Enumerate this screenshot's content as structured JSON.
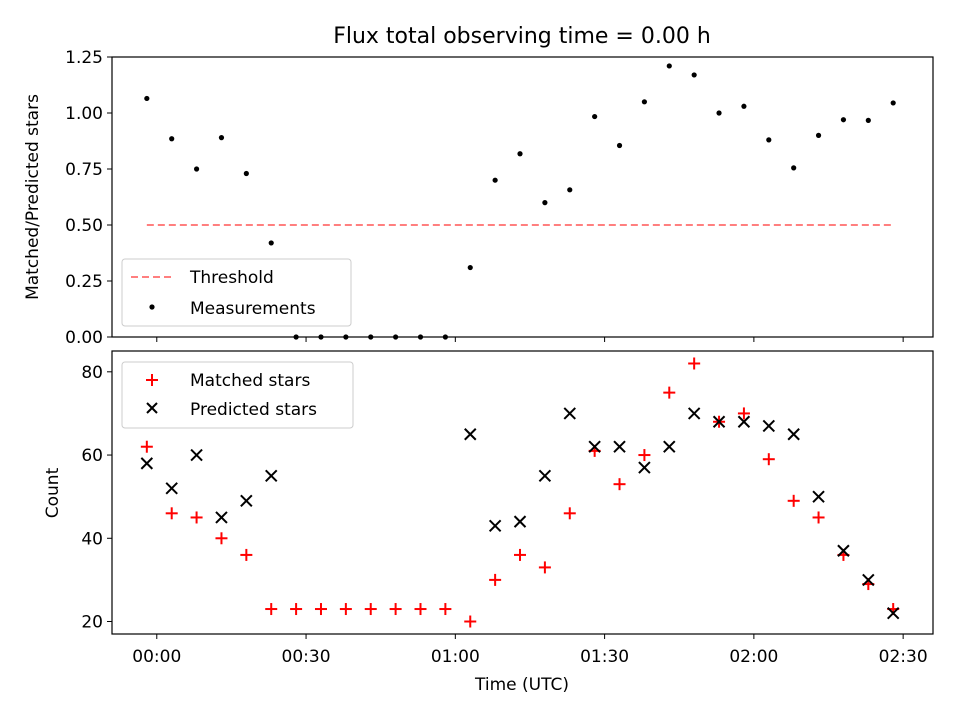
{
  "chart_data": [
    {
      "type": "scatter",
      "title": "Flux total observing time = 0.00 h",
      "xlabel": "",
      "ylabel": "Matched/Predicted stars",
      "ylim": [
        0,
        1.25
      ],
      "yticks": [
        "0.00",
        "0.25",
        "0.50",
        "0.75",
        "1.00",
        "1.25"
      ],
      "threshold": {
        "name": "Threshold",
        "value": 0.5,
        "color": "#ff7f7f",
        "style": "dashed",
        "x_start_min": -2,
        "x_end_min": 148
      },
      "series": [
        {
          "name": "Measurements",
          "color": "#000000",
          "marker": "dot",
          "x_min": [
            -2,
            3,
            8,
            13,
            18,
            23,
            28,
            33,
            38,
            43,
            48,
            53,
            58,
            63,
            68,
            73,
            78,
            83,
            88,
            93,
            98,
            103,
            108,
            113,
            118,
            123,
            128,
            133,
            138,
            143,
            148
          ],
          "y": [
            1.065,
            0.885,
            0.75,
            0.89,
            0.73,
            0.42,
            0.0,
            0.0,
            0.0,
            0.0,
            0.0,
            0.0,
            0.0,
            0.31,
            0.7,
            0.818,
            0.6,
            0.657,
            0.984,
            0.855,
            1.05,
            1.21,
            1.17,
            1.0,
            1.03,
            0.88,
            0.755,
            0.9,
            0.97,
            0.967,
            1.045
          ]
        }
      ],
      "legend_placement": "lower-left"
    },
    {
      "type": "scatter",
      "title": "",
      "xlabel": "Time (UTC)",
      "ylabel": "Count",
      "ylim": [
        17,
        85
      ],
      "yticks": [
        "20",
        "40",
        "60",
        "80"
      ],
      "xticks": [
        "00:00",
        "00:30",
        "01:00",
        "01:30",
        "02:00",
        "02:30"
      ],
      "xtick_minutes": [
        0,
        30,
        60,
        90,
        120,
        150
      ],
      "xlim_min": [
        -9,
        156
      ],
      "series": [
        {
          "name": "Matched stars",
          "color": "#ff0000",
          "marker": "plus",
          "x_min": [
            -2,
            3,
            8,
            13,
            18,
            23,
            28,
            33,
            38,
            43,
            48,
            53,
            58,
            63,
            68,
            73,
            78,
            83,
            88,
            93,
            98,
            103,
            108,
            113,
            118,
            123,
            128,
            133,
            138,
            143,
            148
          ],
          "y": [
            62,
            46,
            45,
            40,
            36,
            23,
            23,
            23,
            23,
            23,
            23,
            23,
            23,
            20,
            30,
            36,
            33,
            46,
            61,
            53,
            60,
            75,
            82,
            68,
            70,
            59,
            49,
            45,
            36,
            29,
            23
          ]
        },
        {
          "name": "Predicted stars",
          "color": "#000000",
          "marker": "cross",
          "x_min": [
            -2,
            3,
            8,
            13,
            18,
            23,
            63,
            68,
            73,
            78,
            83,
            88,
            93,
            98,
            103,
            108,
            113,
            118,
            123,
            128,
            133,
            138,
            143,
            148
          ],
          "y": [
            58,
            52,
            60,
            45,
            49,
            55,
            65,
            43,
            44,
            55,
            70,
            62,
            62,
            57,
            62,
            70,
            68,
            68,
            67,
            65,
            50,
            37,
            30,
            22
          ]
        }
      ],
      "legend_placement": "upper-left"
    }
  ]
}
